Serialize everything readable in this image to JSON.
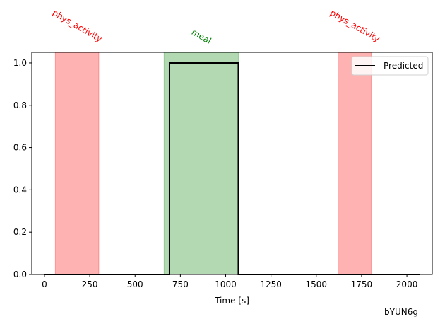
{
  "chart_data": {
    "type": "line",
    "xlabel": "Time [s]",
    "ylabel": "",
    "xlim": [
      -70,
      2140
    ],
    "ylim": [
      0,
      1.05
    ],
    "x_ticks": [
      0,
      250,
      500,
      750,
      1000,
      1250,
      1500,
      1750,
      2000
    ],
    "y_ticks": [
      0.0,
      0.2,
      0.4,
      0.6,
      0.8,
      1.0
    ],
    "x_tick_labels": [
      "0",
      "250",
      "500",
      "750",
      "1000",
      "1250",
      "1500",
      "1750",
      "2000"
    ],
    "y_tick_labels": [
      "0.0",
      "0.2",
      "0.4",
      "0.6",
      "0.8",
      "1.0"
    ],
    "grid": false,
    "legend_position": "top-right",
    "series": [
      {
        "name": "Predicted",
        "color": "#000000",
        "x": [
          0,
          690,
          690,
          1070,
          1070,
          2070
        ],
        "y": [
          0,
          0,
          1,
          1,
          0,
          0
        ]
      }
    ],
    "spans": [
      {
        "label": "phys_activity",
        "x_start": 60,
        "x_end": 300,
        "color": "#ff0000",
        "label_color": "#ff0000"
      },
      {
        "label": "meal",
        "x_start": 660,
        "x_end": 1070,
        "color": "#008000",
        "label_color": "#008000"
      },
      {
        "label": "phys_activity",
        "x_start": 1620,
        "x_end": 1805,
        "color": "#ff0000",
        "label_color": "#ff0000"
      }
    ],
    "watermark": "bYUN6g"
  }
}
